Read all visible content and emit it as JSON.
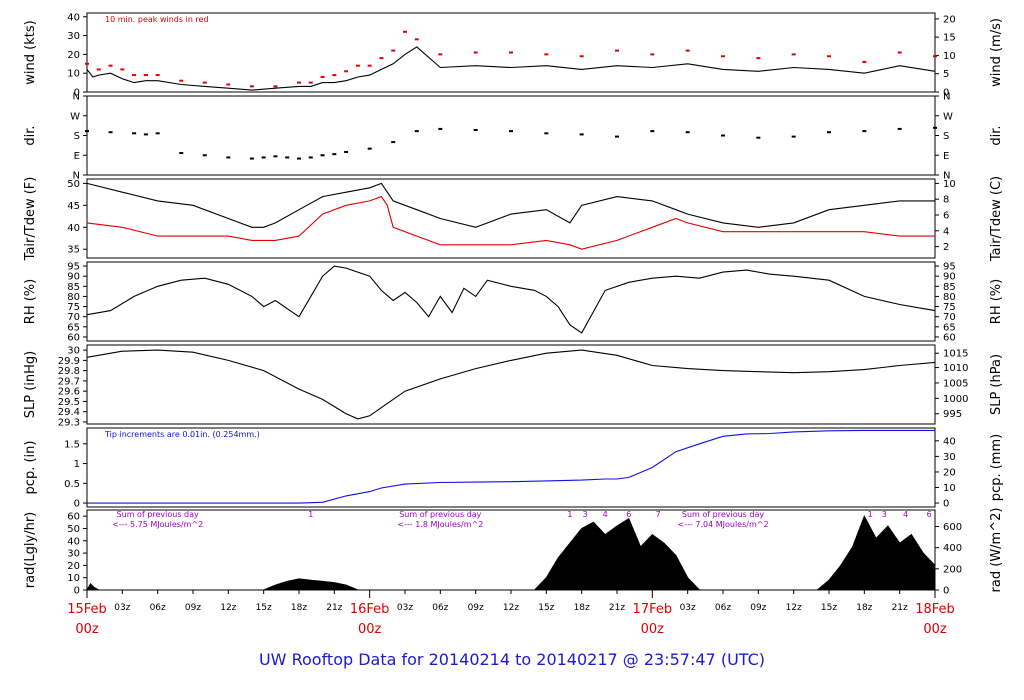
{
  "title": "UW Rooftop Data for 20140214  to  20140217 @ 23:57:47  (UTC)",
  "colors": {
    "black": "#000000",
    "red": "#e00000",
    "blue": "#1010e0",
    "purple": "#a000c8",
    "titleBlue": "#1a1ad2"
  },
  "chart_data": [
    {
      "type": "line",
      "ylabel": "wind (kts)",
      "ylabel_right": "wind (m/s)",
      "ylim": [
        0,
        42
      ],
      "yticks": [
        0,
        10,
        20,
        30,
        40
      ],
      "right_ticks": [
        {
          "v": 0,
          "l": "0"
        },
        {
          "v": 9.72,
          "l": "5"
        },
        {
          "v": 19.44,
          "l": "10"
        },
        {
          "v": 29.16,
          "l": "15"
        },
        {
          "v": 38.88,
          "l": "20"
        }
      ],
      "annotation": "10 min. peak winds in red",
      "series": [
        {
          "color": "black",
          "kind": "line",
          "x": [
            0,
            0.5,
            1,
            2,
            3,
            4,
            5,
            6,
            8,
            10,
            12,
            14,
            16,
            18,
            19,
            20,
            21,
            22,
            23,
            24,
            25,
            26,
            27,
            28,
            30,
            33,
            36,
            39,
            42,
            45,
            48,
            51,
            54,
            57,
            60,
            63,
            66,
            69,
            72
          ],
          "values": [
            12,
            8,
            9,
            10,
            7,
            5,
            6,
            6,
            4,
            3,
            2,
            1,
            2,
            3,
            3,
            5,
            5,
            6,
            8,
            9,
            12,
            15,
            20,
            24,
            13,
            14,
            13,
            14,
            12,
            14,
            13,
            15,
            12,
            11,
            13,
            12,
            10,
            14,
            11
          ]
        },
        {
          "color": "red",
          "kind": "dots",
          "x": [
            0,
            1,
            2,
            3,
            4,
            5,
            6,
            8,
            10,
            12,
            14,
            16,
            18,
            19,
            20,
            21,
            22,
            23,
            24,
            25,
            26,
            27,
            28,
            30,
            33,
            36,
            39,
            42,
            45,
            48,
            51,
            54,
            57,
            60,
            63,
            66,
            69,
            72
          ],
          "values": [
            15,
            12,
            14,
            12,
            9,
            9,
            9,
            6,
            5,
            4,
            3,
            3,
            5,
            5,
            8,
            9,
            11,
            14,
            14,
            18,
            22,
            32,
            28,
            20,
            21,
            21,
            20,
            19,
            22,
            20,
            22,
            19,
            18,
            20,
            19,
            16,
            21,
            19
          ]
        }
      ]
    },
    {
      "type": "scatter",
      "ylabel": "dir.",
      "ylabel_right": "dir.",
      "ylim": [
        0,
        360
      ],
      "yticks_labeled": [
        {
          "v": 0,
          "l": "N"
        },
        {
          "v": 90,
          "l": "E"
        },
        {
          "v": 180,
          "l": "S"
        },
        {
          "v": 270,
          "l": "W"
        },
        {
          "v": 360,
          "l": "N"
        }
      ],
      "series": [
        {
          "color": "black",
          "x": [
            0,
            2,
            4,
            5,
            6,
            8,
            10,
            12,
            14,
            15,
            16,
            17,
            18,
            19,
            20,
            21,
            22,
            24,
            26,
            28,
            30,
            33,
            36,
            39,
            42,
            45,
            48,
            51,
            54,
            57,
            60,
            63,
            66,
            69,
            72
          ],
          "values": [
            200,
            195,
            190,
            185,
            190,
            100,
            90,
            80,
            75,
            80,
            85,
            80,
            75,
            80,
            90,
            95,
            105,
            120,
            150,
            200,
            210,
            205,
            200,
            190,
            185,
            175,
            200,
            195,
            180,
            170,
            175,
            195,
            200,
            210,
            215
          ]
        }
      ]
    },
    {
      "type": "line",
      "ylabel": "Tair/Tdew (F)",
      "ylabel_right": "Tair/Tdew (C)",
      "ylim": [
        33,
        51
      ],
      "yticks": [
        35,
        40,
        45,
        50
      ],
      "right_ticks": [
        {
          "v": 35.6,
          "l": "2"
        },
        {
          "v": 39.2,
          "l": "4"
        },
        {
          "v": 42.8,
          "l": "6"
        },
        {
          "v": 46.4,
          "l": "8"
        },
        {
          "v": 50,
          "l": "10"
        }
      ],
      "series": [
        {
          "color": "black",
          "x": [
            0,
            3,
            6,
            9,
            12,
            14,
            15,
            16,
            18,
            20,
            22,
            24,
            25,
            25.5,
            26,
            28,
            30,
            33,
            36,
            39,
            41,
            42,
            45,
            48,
            50,
            51,
            54,
            57,
            60,
            63,
            66,
            69,
            72
          ],
          "values": [
            50,
            48,
            46,
            45,
            42,
            40,
            40,
            41,
            44,
            47,
            48,
            49,
            50,
            48,
            46,
            44,
            42,
            40,
            43,
            44,
            41,
            45,
            47,
            46,
            44,
            43,
            41,
            40,
            41,
            44,
            45,
            46,
            46
          ]
        },
        {
          "color": "red",
          "x": [
            0,
            3,
            6,
            9,
            12,
            14,
            15,
            16,
            18,
            20,
            22,
            24,
            25,
            25.5,
            26,
            28,
            30,
            33,
            36,
            39,
            41,
            42,
            45,
            48,
            50,
            51,
            54,
            57,
            60,
            63,
            66,
            69,
            72
          ],
          "values": [
            41,
            40,
            38,
            38,
            38,
            37,
            37,
            37,
            38,
            43,
            45,
            46,
            47,
            45,
            40,
            38,
            36,
            36,
            36,
            37,
            36,
            35,
            37,
            40,
            42,
            41,
            39,
            39,
            39,
            39,
            39,
            38,
            38
          ]
        }
      ]
    },
    {
      "type": "line",
      "ylabel": "RH (%)",
      "ylabel_right": "RH (%)",
      "ylim": [
        58,
        97
      ],
      "yticks": [
        60,
        65,
        70,
        75,
        80,
        85,
        90,
        95
      ],
      "right_ticks": [
        {
          "v": 60,
          "l": "60"
        },
        {
          "v": 65,
          "l": "65"
        },
        {
          "v": 70,
          "l": "70"
        },
        {
          "v": 75,
          "l": "75"
        },
        {
          "v": 80,
          "l": "80"
        },
        {
          "v": 85,
          "l": "85"
        },
        {
          "v": 90,
          "l": "90"
        },
        {
          "v": 95,
          "l": "95"
        }
      ],
      "series": [
        {
          "color": "black",
          "x": [
            0,
            2,
            4,
            6,
            8,
            10,
            12,
            14,
            15,
            16,
            18,
            20,
            21,
            22,
            24,
            25,
            26,
            27,
            28,
            29,
            30,
            31,
            32,
            33,
            34,
            36,
            38,
            39,
            40,
            41,
            42,
            44,
            46,
            48,
            50,
            52,
            54,
            56,
            58,
            60,
            63,
            66,
            69,
            71,
            72
          ],
          "values": [
            71,
            73,
            80,
            85,
            88,
            89,
            86,
            80,
            75,
            78,
            70,
            90,
            95,
            94,
            90,
            83,
            78,
            82,
            77,
            70,
            80,
            72,
            84,
            80,
            88,
            85,
            83,
            80,
            75,
            66,
            62,
            83,
            87,
            89,
            90,
            89,
            92,
            93,
            91,
            90,
            88,
            80,
            76,
            74,
            73
          ]
        }
      ]
    },
    {
      "type": "line",
      "ylabel": "SLP (inHg)",
      "ylabel_right": "SLP (hPa)",
      "ylim": [
        29.28,
        30.05
      ],
      "yticks": [
        29.3,
        29.4,
        29.5,
        29.6,
        29.7,
        29.8,
        29.9,
        30.0
      ],
      "right_ticks": [
        {
          "v": 29.38,
          "l": "995"
        },
        {
          "v": 29.53,
          "l": "1000"
        },
        {
          "v": 29.68,
          "l": "1005"
        },
        {
          "v": 29.83,
          "l": "1010"
        },
        {
          "v": 29.97,
          "l": "1015"
        }
      ],
      "series": [
        {
          "color": "black",
          "x": [
            0,
            3,
            6,
            9,
            12,
            15,
            18,
            20,
            22,
            23,
            24,
            25,
            27,
            30,
            33,
            36,
            39,
            42,
            45,
            48,
            51,
            54,
            57,
            60,
            63,
            66,
            69,
            72
          ],
          "values": [
            29.93,
            29.99,
            30.0,
            29.98,
            29.9,
            29.8,
            29.62,
            29.52,
            29.38,
            29.33,
            29.36,
            29.44,
            29.6,
            29.72,
            29.82,
            29.9,
            29.97,
            30.0,
            29.95,
            29.85,
            29.82,
            29.8,
            29.79,
            29.78,
            29.79,
            29.81,
            29.85,
            29.88
          ]
        }
      ]
    },
    {
      "type": "line",
      "ylabel": "pcp. (in)",
      "ylabel_right": "pcp. (mm)",
      "ylim": [
        -0.1,
        1.9
      ],
      "yticks": [
        0.0,
        0.5,
        1.0,
        1.5
      ],
      "right_ticks": [
        {
          "v": 0,
          "l": "0"
        },
        {
          "v": 0.394,
          "l": "10"
        },
        {
          "v": 0.787,
          "l": "20"
        },
        {
          "v": 1.181,
          "l": "30"
        },
        {
          "v": 1.575,
          "l": "40"
        }
      ],
      "annotation": "Tip increments are 0.01in. (0.254mm.)",
      "series": [
        {
          "color": "blue",
          "x": [
            0,
            6,
            12,
            18,
            20,
            22,
            24,
            25,
            27,
            30,
            33,
            36,
            39,
            42,
            44,
            45,
            46,
            48,
            50,
            52,
            54,
            56,
            58,
            60,
            63,
            66,
            69,
            72
          ],
          "values": [
            0,
            0,
            0,
            0,
            0.02,
            0.18,
            0.29,
            0.38,
            0.48,
            0.52,
            0.53,
            0.54,
            0.56,
            0.58,
            0.61,
            0.61,
            0.65,
            0.9,
            1.3,
            1.5,
            1.69,
            1.75,
            1.76,
            1.8,
            1.83,
            1.84,
            1.84,
            1.84
          ]
        }
      ]
    },
    {
      "type": "area",
      "ylabel": "rad(Lgly/hr)",
      "ylabel_right": "rad (W/m^2)",
      "ylim": [
        0,
        65
      ],
      "yticks": [
        0,
        10,
        20,
        30,
        40,
        50,
        60
      ],
      "right_ticks": [
        {
          "v": 0,
          "l": "0"
        },
        {
          "v": 17.2,
          "l": "200"
        },
        {
          "v": 34.4,
          "l": "400"
        },
        {
          "v": 51.6,
          "l": "600"
        }
      ],
      "series": [
        {
          "color": "black",
          "x": [
            0,
            0.3,
            0.6,
            1,
            15,
            16,
            17,
            18,
            19,
            20,
            21,
            22,
            23,
            38,
            39,
            40,
            41,
            42,
            43,
            44,
            45,
            46,
            47,
            48,
            49,
            50,
            51,
            52,
            62,
            63,
            64,
            65,
            66,
            67,
            68,
            69,
            70,
            71,
            72
          ],
          "values": [
            0,
            5,
            2,
            0,
            0,
            4,
            7,
            9,
            8,
            7,
            6,
            4,
            0,
            0,
            10,
            26,
            38,
            50,
            55,
            45,
            52,
            58,
            35,
            45,
            38,
            28,
            10,
            0,
            0,
            8,
            20,
            35,
            60,
            42,
            52,
            38,
            45,
            30,
            20
          ]
        }
      ],
      "daily_notes": [
        {
          "x": 6,
          "line1": "Sum of previous day",
          "line2": "<--- 5.75 MJoules/m^2"
        },
        {
          "x": 30,
          "line1": "Sum of previous day",
          "line2": "<--- 1.8 MJoules/m^2"
        },
        {
          "x": 54,
          "line1": "Sum of previous day",
          "line2": "<--- 7.04 MJoules/m^2"
        }
      ],
      "hour_marks": [
        {
          "x": 19,
          "l": "1"
        },
        {
          "x": 41,
          "l": "1"
        },
        {
          "x": 42.3,
          "l": "3"
        },
        {
          "x": 44,
          "l": "4"
        },
        {
          "x": 46,
          "l": "6"
        },
        {
          "x": 48.5,
          "l": "7"
        },
        {
          "x": 66.5,
          "l": "1"
        },
        {
          "x": 67.7,
          "l": "3"
        },
        {
          "x": 69.5,
          "l": "4"
        },
        {
          "x": 71.5,
          "l": "6"
        }
      ]
    }
  ],
  "x_axis": {
    "range": [
      0,
      72
    ],
    "minor": [
      {
        "x": 3,
        "l": "03z"
      },
      {
        "x": 6,
        "l": "06z"
      },
      {
        "x": 9,
        "l": "09z"
      },
      {
        "x": 12,
        "l": "12z"
      },
      {
        "x": 15,
        "l": "15z"
      },
      {
        "x": 18,
        "l": "18z"
      },
      {
        "x": 21,
        "l": "21z"
      },
      {
        "x": 27,
        "l": "03z"
      },
      {
        "x": 30,
        "l": "06z"
      },
      {
        "x": 33,
        "l": "09z"
      },
      {
        "x": 36,
        "l": "12z"
      },
      {
        "x": 39,
        "l": "15z"
      },
      {
        "x": 42,
        "l": "18z"
      },
      {
        "x": 45,
        "l": "21z"
      },
      {
        "x": 51,
        "l": "03z"
      },
      {
        "x": 54,
        "l": "06z"
      },
      {
        "x": 57,
        "l": "09z"
      },
      {
        "x": 60,
        "l": "12z"
      },
      {
        "x": 63,
        "l": "15z"
      },
      {
        "x": 66,
        "l": "18z"
      },
      {
        "x": 69,
        "l": "21z"
      }
    ],
    "major": [
      {
        "x": 0,
        "date": "15Feb",
        "hour": "00z"
      },
      {
        "x": 24,
        "date": "16Feb",
        "hour": "00z"
      },
      {
        "x": 48,
        "date": "17Feb",
        "hour": "00z"
      },
      {
        "x": 72,
        "date": "18Feb",
        "hour": "00z"
      }
    ]
  }
}
